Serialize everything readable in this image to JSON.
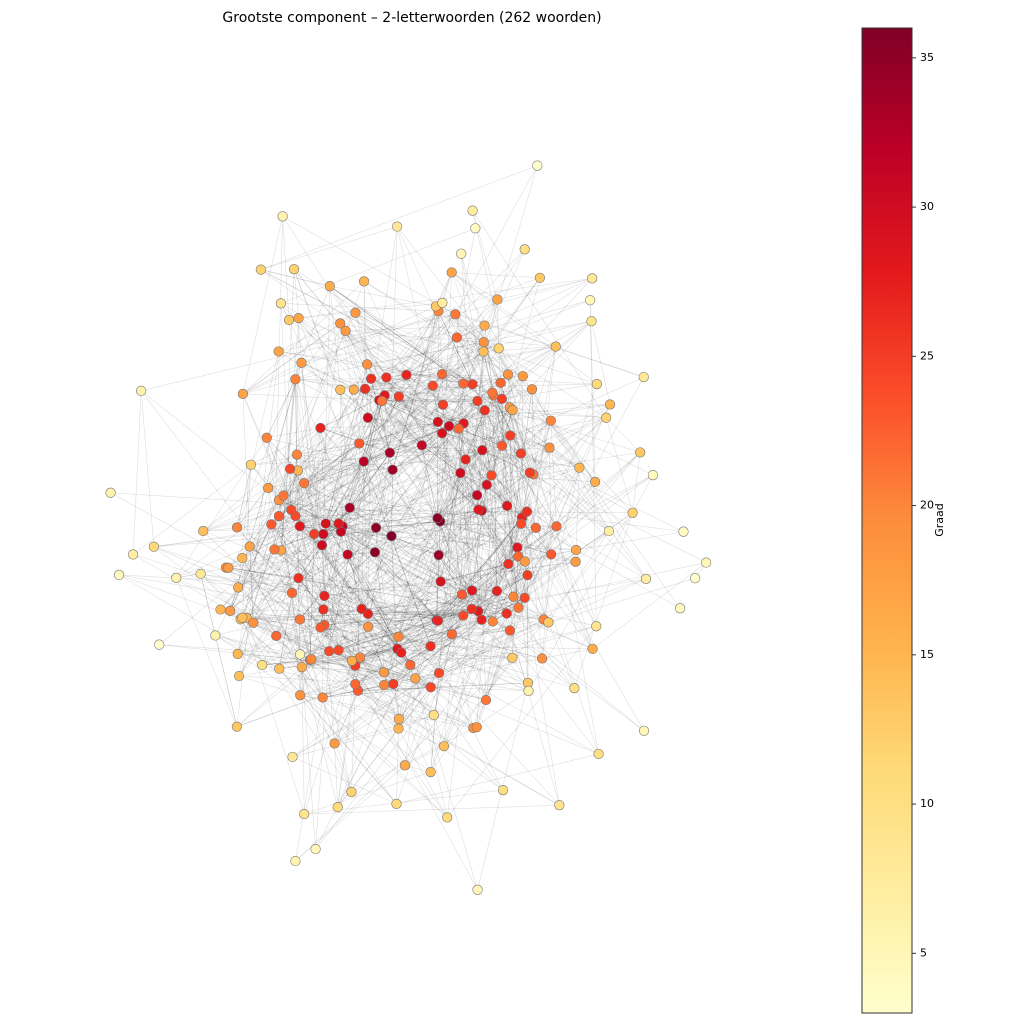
{
  "chart_data": {
    "type": "network",
    "title": "Grootste component – 2-letterwoorden (262 woorden)",
    "colorbar_label": "Graad",
    "colormap": [
      "#ffffcc",
      "#ffeda0",
      "#fed976",
      "#feb24c",
      "#fd8d3c",
      "#fc4e2a",
      "#e31a1c",
      "#bd0026",
      "#800026"
    ],
    "clim": [
      3,
      36
    ],
    "cticks": [
      5,
      10,
      15,
      20,
      25,
      30,
      35
    ],
    "node_degrees": [
      5,
      12,
      6,
      18,
      10,
      20,
      19,
      14,
      5,
      13,
      17,
      22,
      16,
      25,
      15,
      21,
      20,
      24,
      19,
      11,
      18,
      23,
      28,
      19,
      27,
      14,
      16,
      21,
      29,
      17,
      13,
      22,
      20,
      26,
      30,
      25,
      18,
      15,
      24,
      12,
      31,
      19,
      27,
      23,
      35,
      16,
      22,
      28,
      20,
      26,
      33,
      24,
      17,
      29,
      21,
      25,
      14,
      19,
      30,
      27,
      22,
      36,
      18,
      26,
      32,
      20,
      28,
      24,
      15,
      34,
      23,
      27,
      21,
      29,
      19,
      25,
      31,
      17,
      22,
      26,
      13,
      20,
      28,
      24,
      35,
      18,
      27,
      30,
      22,
      16,
      25,
      29,
      21,
      33,
      19,
      26,
      23,
      28,
      20,
      17,
      24,
      31,
      22,
      15,
      27,
      25,
      36,
      19,
      28,
      23,
      30,
      21,
      26,
      18,
      29,
      24,
      32,
      20,
      27,
      14,
      22,
      25,
      19,
      34,
      23,
      28,
      21,
      26,
      30,
      17,
      24,
      20,
      27,
      29,
      16,
      25,
      22,
      31,
      18,
      23,
      26,
      20,
      28,
      24,
      19,
      35,
      22,
      27,
      25,
      21,
      30,
      18,
      23,
      26,
      15,
      29,
      20,
      24,
      28,
      17,
      21,
      25,
      12,
      27,
      19,
      23,
      30,
      16,
      24,
      22,
      26,
      18,
      28,
      20,
      14,
      25,
      22,
      19,
      27,
      13,
      20,
      24,
      16,
      22,
      18,
      26,
      11,
      21,
      15,
      23,
      19,
      17,
      25,
      13,
      20,
      14,
      22,
      18,
      16,
      12,
      19,
      10,
      17,
      15,
      21,
      9,
      16,
      13,
      18,
      14,
      8,
      17,
      12,
      15,
      7,
      16,
      11,
      14,
      6,
      13,
      10,
      15,
      8,
      12,
      9,
      14,
      7,
      11,
      5,
      13,
      6,
      10,
      4,
      12,
      8,
      9,
      5,
      11,
      7,
      6,
      3,
      8,
      4,
      9,
      5,
      10,
      6,
      7,
      4,
      5,
      3,
      8,
      6,
      4,
      9,
      5,
      7,
      3,
      4,
      6,
      10,
      14
    ]
  }
}
